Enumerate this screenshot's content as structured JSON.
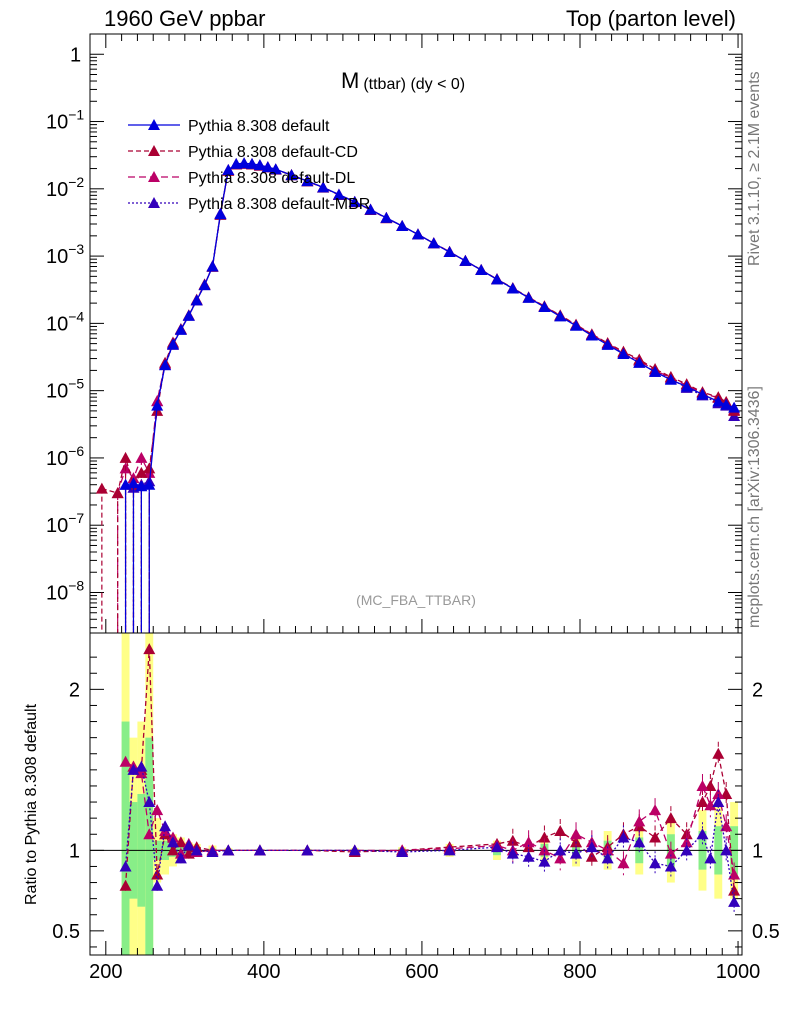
{
  "header": {
    "left": "1960 GeV ppbar",
    "right": "Top (parton level)"
  },
  "side_labels": {
    "rivet": "Rivet 3.1.10, ≥ 2.1M events",
    "mcplots": "mcplots.cern.ch [arXiv:1306.3436]"
  },
  "chart_data": [
    {
      "type": "line",
      "title": "M",
      "title_sub": "(ttbar)  (dy < 0)",
      "watermark": "(MC_FBA_TTBAR)",
      "xlim": [
        180,
        1005
      ],
      "ylim": [
        2.5e-09,
        2.0
      ],
      "yscale": "log",
      "yticks": [
        {
          "v": 1,
          "label": "1"
        },
        {
          "v": 0.1,
          "label": "10",
          "sup": "−1"
        },
        {
          "v": 0.01,
          "label": "10",
          "sup": "−2"
        },
        {
          "v": 0.001,
          "label": "10",
          "sup": "−3"
        },
        {
          "v": 0.0001,
          "label": "10",
          "sup": "−4"
        },
        {
          "v": 1e-05,
          "label": "10",
          "sup": "−5"
        },
        {
          "v": 1e-06,
          "label": "10",
          "sup": "−6"
        },
        {
          "v": 1e-07,
          "label": "10",
          "sup": "−7"
        },
        {
          "v": 1e-08,
          "label": "10",
          "sup": "−8"
        }
      ],
      "legend_position": "top-left",
      "series": [
        {
          "name": "Pythia 8.308 default",
          "color": "#0000dd",
          "dash": "",
          "x": [
            225,
            235,
            245,
            255,
            265,
            275,
            285,
            295,
            305,
            315,
            325,
            335,
            345,
            355,
            365,
            375,
            385,
            395,
            405,
            415,
            435,
            455,
            475,
            495,
            515,
            535,
            555,
            575,
            595,
            615,
            635,
            655,
            675,
            695,
            715,
            735,
            755,
            775,
            795,
            815,
            835,
            855,
            875,
            895,
            915,
            935,
            955,
            975,
            985,
            995
          ],
          "y": [
            4e-07,
            4.2e-07,
            3.8e-07,
            4e-07,
            6e-06,
            2.4e-05,
            4.9e-05,
            8e-05,
            0.00013,
            0.00022,
            0.00037,
            0.0007,
            0.0042,
            0.019,
            0.0235,
            0.024,
            0.0235,
            0.0225,
            0.021,
            0.0195,
            0.016,
            0.013,
            0.0105,
            0.0082,
            0.0064,
            0.0049,
            0.0037,
            0.0028,
            0.0021,
            0.00155,
            0.00115,
            0.00085,
            0.00062,
            0.00045,
            0.00033,
            0.00024,
            0.000175,
            0.000127,
            9.2e-05,
            6.6e-05,
            4.8e-05,
            3.5e-05,
            2.6e-05,
            1.9e-05,
            1.45e-05,
            1.15e-05,
            8.8e-06,
            6.9e-06,
            6.2e-06,
            5.6e-06
          ]
        },
        {
          "name": "Pythia 8.308 default-CD",
          "color": "#aa0033",
          "dash": "5 3",
          "x": [
            195,
            215,
            225,
            235,
            245,
            255,
            265,
            275,
            285,
            295,
            305,
            315,
            325,
            335,
            345,
            355,
            365,
            375,
            385,
            395,
            405,
            415,
            435,
            455,
            475,
            495,
            515,
            535,
            555,
            575,
            595,
            615,
            635,
            655,
            675,
            695,
            715,
            735,
            755,
            775,
            795,
            815,
            835,
            855,
            875,
            895,
            915,
            935,
            955,
            975,
            985,
            995
          ],
          "y": [
            3.5e-07,
            3e-07,
            1e-06,
            4e-07,
            6e-07,
            7e-07,
            5e-06,
            2.6e-05,
            5.2e-05,
            8.2e-05,
            0.000132,
            0.000225,
            0.00038,
            0.00069,
            0.0041,
            0.0185,
            0.023,
            0.0235,
            0.023,
            0.022,
            0.0208,
            0.0193,
            0.016,
            0.0129,
            0.0104,
            0.0081,
            0.00635,
            0.00485,
            0.00365,
            0.0028,
            0.0021,
            0.00155,
            0.00115,
            0.00085,
            0.000625,
            0.000455,
            0.000335,
            0.000245,
            0.00018,
            0.000132,
            9.6e-05,
            6.9e-05,
            5.1e-05,
            3.8e-05,
            2.9e-05,
            2.1e-05,
            1.6e-05,
            1.25e-05,
            9.5e-06,
            8e-06,
            6.8e-06,
            5e-06
          ]
        },
        {
          "name": "Pythia 8.308 default-DL",
          "color": "#bb0066",
          "dash": "7 4",
          "x": [
            215,
            225,
            235,
            245,
            255,
            265,
            275,
            285,
            295,
            305,
            315,
            325,
            335,
            345,
            355,
            365,
            375,
            385,
            395,
            405,
            415,
            435,
            455,
            475,
            495,
            515,
            535,
            555,
            575,
            595,
            615,
            635,
            655,
            675,
            695,
            715,
            735,
            755,
            775,
            795,
            815,
            835,
            855,
            875,
            895,
            915,
            935,
            955,
            975,
            985,
            995
          ],
          "y": [
            3e-07,
            7e-07,
            5e-07,
            1e-06,
            6e-07,
            7e-06,
            2.5e-05,
            5e-05,
            8.1e-05,
            0.000131,
            0.00022,
            0.000375,
            0.0007,
            0.0042,
            0.019,
            0.0233,
            0.0238,
            0.0233,
            0.0223,
            0.021,
            0.0194,
            0.016,
            0.0131,
            0.0105,
            0.0082,
            0.0064,
            0.0049,
            0.0037,
            0.0028,
            0.0021,
            0.00156,
            0.00116,
            0.00085,
            0.00062,
            0.000455,
            0.00033,
            0.000242,
            0.000178,
            0.00013,
            9.5e-05,
            6.8e-05,
            5e-05,
            3.7e-05,
            2.8e-05,
            2e-05,
            1.55e-05,
            1.2e-05,
            9.2e-06,
            7.8e-06,
            6.6e-06,
            5.2e-06
          ]
        },
        {
          "name": "Pythia 8.308 default-MBR",
          "color": "#3300bb",
          "dash": "2 2",
          "x": [
            225,
            235,
            245,
            255,
            265,
            275,
            285,
            295,
            305,
            315,
            325,
            335,
            345,
            355,
            365,
            375,
            385,
            395,
            405,
            415,
            435,
            455,
            475,
            495,
            515,
            535,
            555,
            575,
            595,
            615,
            635,
            655,
            675,
            695,
            715,
            735,
            755,
            775,
            795,
            815,
            835,
            855,
            875,
            895,
            915,
            935,
            955,
            975,
            985,
            995
          ],
          "y": [
            4e-07,
            3.6e-07,
            4e-07,
            4.5e-07,
            7e-06,
            2.4e-05,
            4.8e-05,
            8.2e-05,
            0.00013,
            0.00022,
            0.00037,
            0.00071,
            0.0043,
            0.019,
            0.0233,
            0.024,
            0.0234,
            0.0224,
            0.0209,
            0.0195,
            0.016,
            0.013,
            0.0105,
            0.0082,
            0.0064,
            0.0049,
            0.0037,
            0.0028,
            0.0021,
            0.00155,
            0.00115,
            0.00085,
            0.00062,
            0.00045,
            0.00033,
            0.00024,
            0.000176,
            0.000128,
            9.3e-05,
            6.7e-05,
            4.9e-05,
            3.6e-05,
            2.6e-05,
            1.9e-05,
            1.5e-05,
            1.1e-05,
            8.5e-06,
            6.5e-06,
            6e-06,
            4.2e-06
          ]
        }
      ]
    },
    {
      "type": "line",
      "ylabel": "Ratio to Pythia 8.308 default",
      "xlim": [
        180,
        1005
      ],
      "ylim": [
        0.35,
        2.35
      ],
      "xticks": [
        200,
        400,
        600,
        800,
        1000
      ],
      "yticks": [
        {
          "v": 0.5,
          "label": "0.5"
        },
        {
          "v": 1,
          "label": "1"
        },
        {
          "v": 2,
          "label": "2"
        }
      ],
      "reference_line": 1,
      "band_x": [
        225,
        235,
        245,
        255,
        265,
        275,
        285,
        295,
        305,
        315,
        335,
        355,
        395,
        455,
        515,
        575,
        635,
        695,
        755,
        795,
        835,
        875,
        915,
        955,
        975,
        995
      ],
      "band_green": [
        0.8,
        0.3,
        0.35,
        0.7,
        0.06,
        0.06,
        0.04,
        0.03,
        0.02,
        0.015,
        0.01,
        0.005,
        0.005,
        0.005,
        0.005,
        0.01,
        0.02,
        0.03,
        0.04,
        0.05,
        0.06,
        0.08,
        0.1,
        0.12,
        0.15,
        0.15
      ],
      "band_yellow": [
        1.5,
        0.7,
        0.8,
        1.5,
        0.2,
        0.15,
        0.1,
        0.08,
        0.05,
        0.04,
        0.03,
        0.015,
        0.01,
        0.01,
        0.015,
        0.02,
        0.04,
        0.06,
        0.08,
        0.1,
        0.12,
        0.15,
        0.2,
        0.25,
        0.3,
        0.3
      ],
      "series": [
        {
          "name": "Pythia 8.308 default-CD",
          "color": "#aa0033",
          "dash": "5 3",
          "x": [
            225,
            235,
            245,
            255,
            265,
            275,
            285,
            295,
            305,
            315,
            335,
            355,
            395,
            455,
            515,
            575,
            635,
            695,
            715,
            735,
            755,
            775,
            795,
            815,
            835,
            855,
            875,
            895,
            915,
            935,
            955,
            965,
            975,
            985,
            995
          ],
          "y": [
            0.78,
            1.52,
            1.5,
            2.25,
            0.85,
            1.1,
            1.0,
            1.05,
            0.98,
            1.02,
            1.0,
            1.0,
            1.0,
            1.0,
            0.99,
            1.0,
            1.02,
            1.04,
            1.06,
            1.02,
            1.08,
            1.12,
            1.05,
            0.96,
            1.02,
            1.1,
            1.15,
            1.08,
            1.2,
            1.1,
            1.3,
            1.4,
            1.6,
            1.35,
            0.75
          ]
        },
        {
          "name": "Pythia 8.308 default-DL",
          "color": "#bb0066",
          "dash": "7 4",
          "x": [
            225,
            235,
            245,
            255,
            265,
            275,
            285,
            295,
            305,
            315,
            335,
            355,
            395,
            455,
            515,
            575,
            635,
            695,
            715,
            735,
            755,
            775,
            795,
            815,
            835,
            855,
            875,
            895,
            915,
            935,
            955,
            965,
            975,
            985,
            995
          ],
          "y": [
            1.55,
            1.52,
            1.48,
            1.1,
            1.25,
            1.12,
            1.08,
            0.98,
            1.04,
            0.99,
            1.0,
            1.0,
            1.0,
            1.0,
            1.0,
            1.0,
            1.01,
            1.03,
            1.0,
            1.05,
            1.0,
            0.95,
            1.1,
            1.05,
            1.0,
            0.92,
            1.18,
            1.25,
            0.98,
            1.05,
            1.4,
            1.28,
            1.35,
            1.15,
            0.85
          ]
        },
        {
          "name": "Pythia 8.308 default-MBR",
          "color": "#3300bb",
          "dash": "2 2",
          "x": [
            225,
            235,
            245,
            255,
            265,
            275,
            285,
            295,
            305,
            315,
            335,
            355,
            395,
            455,
            515,
            575,
            635,
            695,
            715,
            735,
            755,
            775,
            795,
            815,
            835,
            855,
            875,
            895,
            915,
            935,
            955,
            965,
            975,
            985,
            995
          ],
          "y": [
            0.9,
            1.5,
            1.52,
            1.3,
            0.78,
            1.15,
            1.05,
            0.95,
            1.03,
            1.0,
            0.99,
            1.0,
            1.0,
            1.0,
            1.0,
            0.99,
            1.0,
            1.02,
            0.98,
            0.96,
            0.93,
            1.0,
            0.98,
            1.02,
            0.95,
            1.08,
            1.05,
            0.92,
            0.9,
            1.0,
            1.1,
            0.95,
            1.3,
            1.0,
            0.68
          ]
        }
      ]
    }
  ]
}
